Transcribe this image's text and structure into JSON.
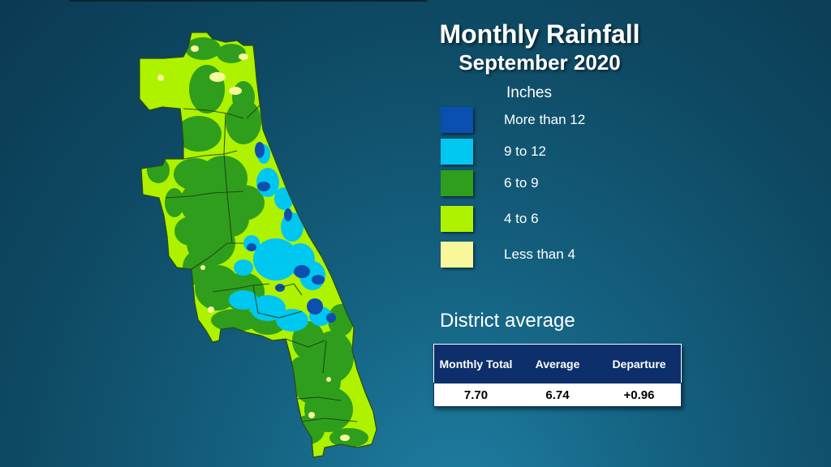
{
  "title": "Monthly Rainfall",
  "subtitle": "September 2020",
  "legend": {
    "units": "Inches",
    "items": [
      {
        "label": "More than 12",
        "color": "#0b4fb0"
      },
      {
        "label": "9 to 12",
        "color": "#00c7f0"
      },
      {
        "label": "6 to 9",
        "color": "#2f9e1c"
      },
      {
        "label": "4 to 6",
        "color": "#aef200"
      },
      {
        "label": "Less than 4",
        "color": "#f8f89a"
      }
    ]
  },
  "district": {
    "heading": "District average",
    "columns": [
      "Monthly Total",
      "Average",
      "Departure"
    ],
    "values": [
      "7.70",
      "6.74",
      "+0.96"
    ]
  }
}
